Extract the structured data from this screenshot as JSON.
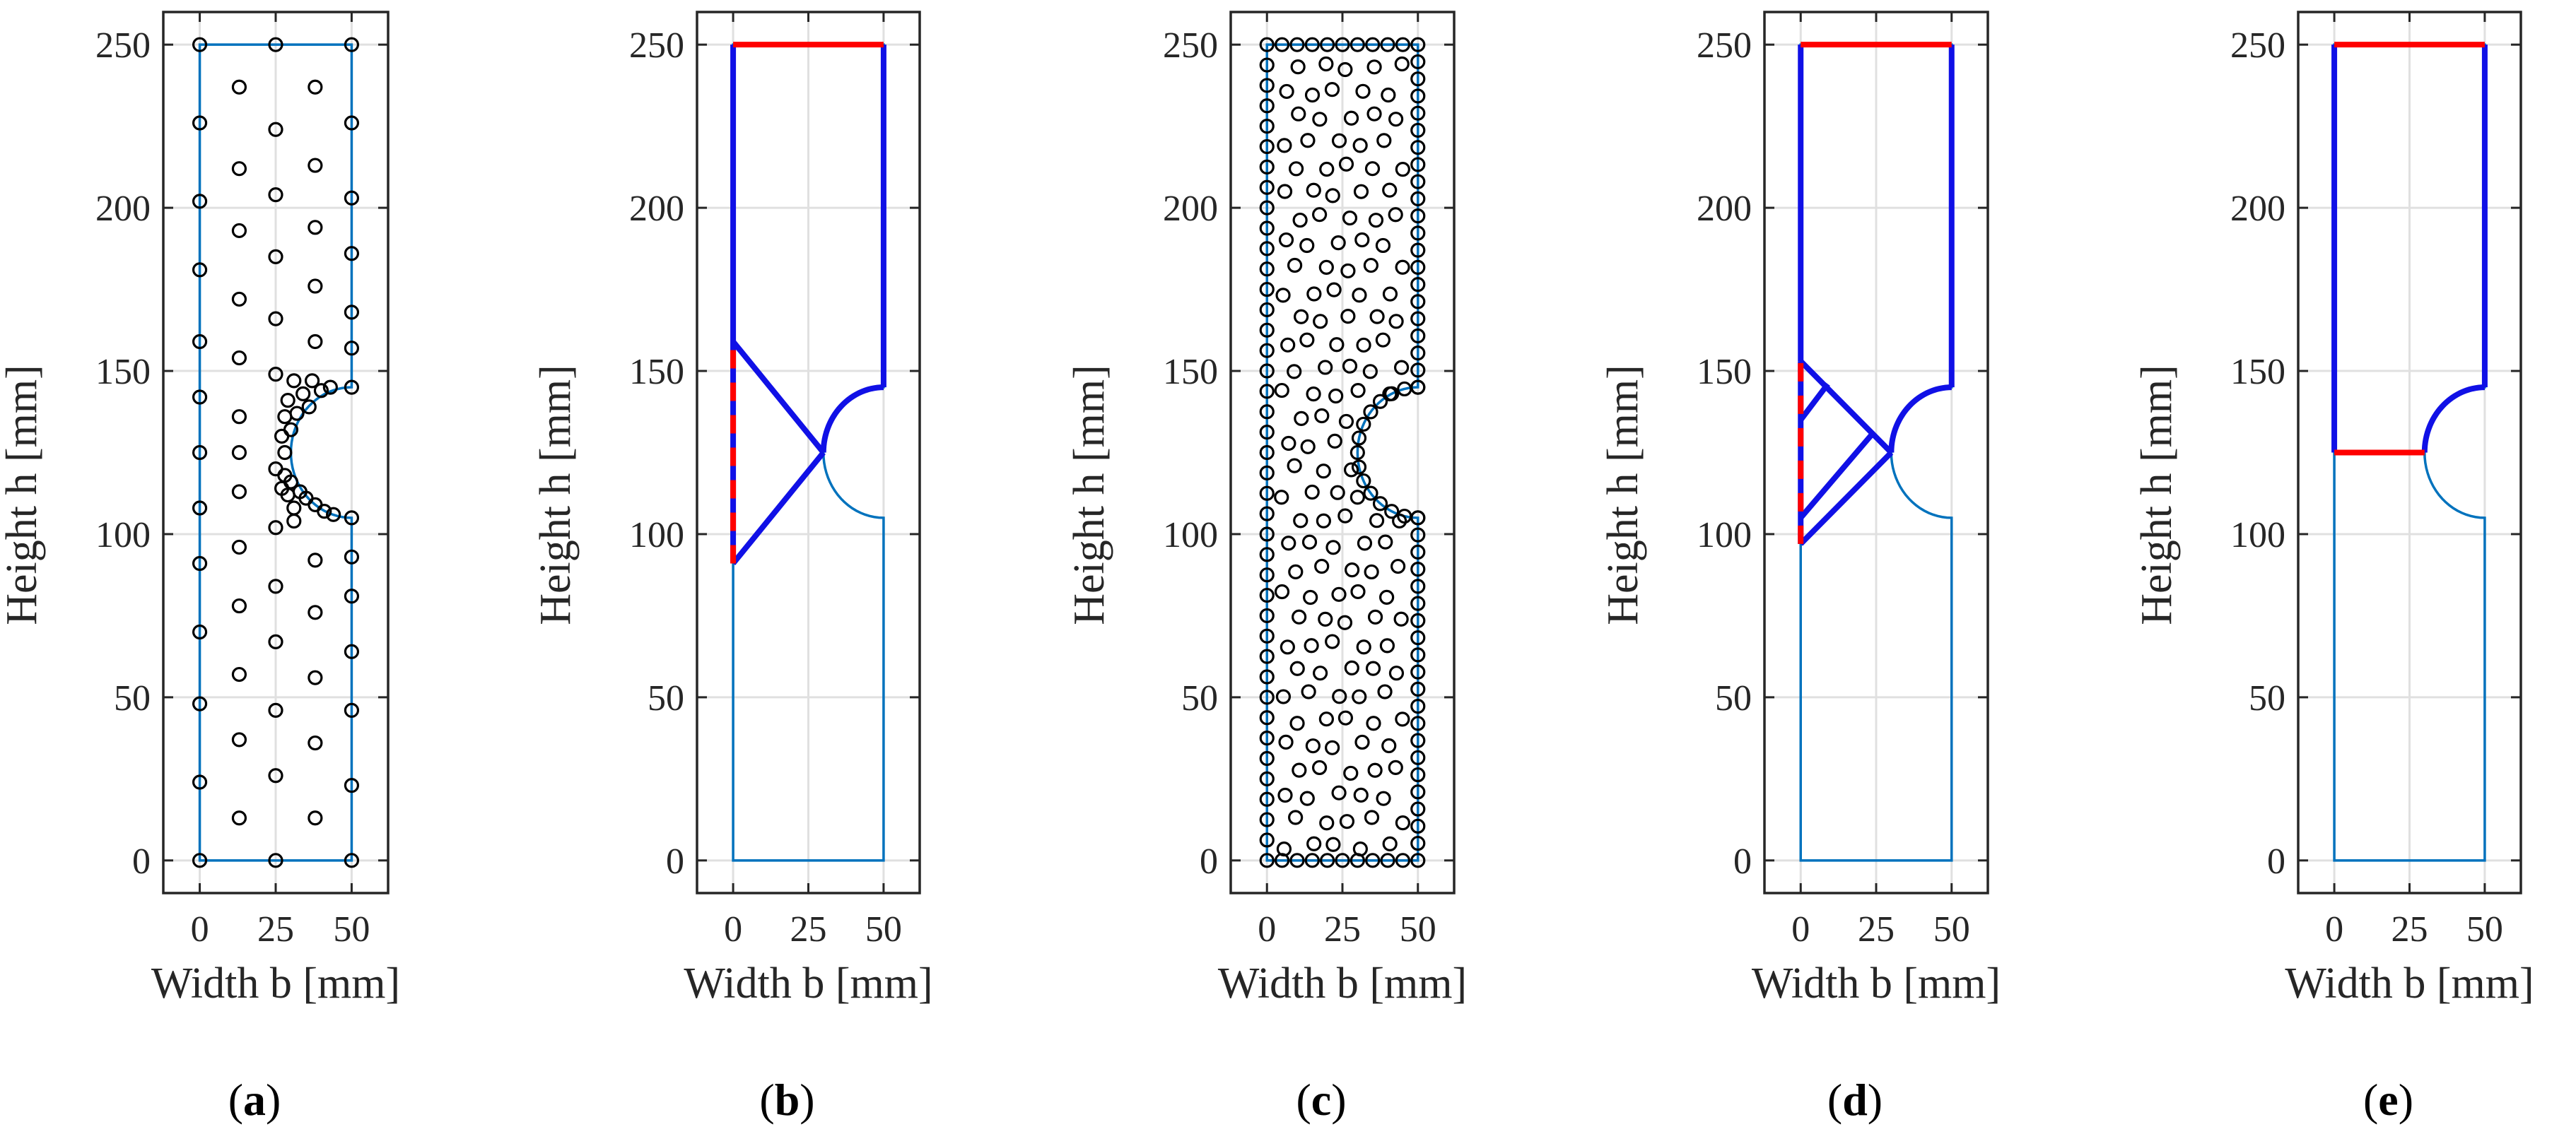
{
  "figure": {
    "panel_labels": [
      "a",
      "b",
      "c",
      "d",
      "e"
    ]
  },
  "colors": {
    "outline": "#0072BD",
    "strut": "#1010E6",
    "tie": "#FF0000",
    "grid": "#E0E0E0",
    "axes": "#262626",
    "point": "#000000"
  },
  "chart_data": [
    {
      "type": "scatter",
      "panel": "a",
      "xlabel": "Width b [mm]",
      "ylabel": "Height h [mm]",
      "xlim": [
        -12,
        62
      ],
      "ylim": [
        -10,
        260
      ],
      "xticks": [
        0,
        25,
        50
      ],
      "yticks": [
        0,
        50,
        100,
        150,
        200,
        250
      ],
      "grid": true,
      "outline": "notched",
      "points": [
        [
          0,
          250
        ],
        [
          25,
          250
        ],
        [
          50,
          250
        ],
        [
          13,
          237
        ],
        [
          38,
          237
        ],
        [
          0,
          226
        ],
        [
          50,
          226
        ],
        [
          25,
          224
        ],
        [
          13,
          212
        ],
        [
          38,
          213
        ],
        [
          0,
          202
        ],
        [
          50,
          203
        ],
        [
          25,
          204
        ],
        [
          13,
          193
        ],
        [
          38,
          194
        ],
        [
          50,
          186
        ],
        [
          0,
          181
        ],
        [
          25,
          185
        ],
        [
          38,
          176
        ],
        [
          13,
          172
        ],
        [
          50,
          168
        ],
        [
          25,
          166
        ],
        [
          38,
          159
        ],
        [
          0,
          159
        ],
        [
          50,
          157
        ],
        [
          13,
          154
        ],
        [
          50,
          145
        ],
        [
          25,
          149
        ],
        [
          31,
          147
        ],
        [
          34,
          143
        ],
        [
          37,
          147
        ],
        [
          40,
          144
        ],
        [
          43,
          145
        ],
        [
          29,
          141
        ],
        [
          32,
          137
        ],
        [
          36,
          139
        ],
        [
          28,
          136
        ],
        [
          30,
          132
        ],
        [
          27,
          130
        ],
        [
          0,
          142
        ],
        [
          13,
          136
        ],
        [
          28,
          125
        ],
        [
          13,
          125
        ],
        [
          0,
          125
        ],
        [
          25,
          120
        ],
        [
          28,
          118
        ],
        [
          30,
          116
        ],
        [
          33,
          113
        ],
        [
          27,
          114
        ],
        [
          29,
          112
        ],
        [
          31,
          108
        ],
        [
          35,
          111
        ],
        [
          38,
          109
        ],
        [
          41,
          107
        ],
        [
          44,
          106
        ],
        [
          31,
          104
        ],
        [
          13,
          113
        ],
        [
          0,
          108
        ],
        [
          50,
          105
        ],
        [
          25,
          102
        ],
        [
          13,
          96
        ],
        [
          38,
          92
        ],
        [
          0,
          91
        ],
        [
          50,
          93
        ],
        [
          25,
          84
        ],
        [
          38,
          76
        ],
        [
          13,
          78
        ],
        [
          0,
          70
        ],
        [
          50,
          81
        ],
        [
          25,
          67
        ],
        [
          38,
          56
        ],
        [
          13,
          57
        ],
        [
          50,
          64
        ],
        [
          0,
          48
        ],
        [
          25,
          46
        ],
        [
          38,
          36
        ],
        [
          13,
          37
        ],
        [
          50,
          46
        ],
        [
          0,
          24
        ],
        [
          25,
          26
        ],
        [
          50,
          23
        ],
        [
          13,
          13
        ],
        [
          38,
          13
        ],
        [
          0,
          0
        ],
        [
          25,
          0
        ],
        [
          50,
          0
        ]
      ]
    },
    {
      "type": "line",
      "panel": "b",
      "xlabel": "Width b [mm]",
      "ylabel": "Height h [mm]",
      "xlim": [
        -12,
        62
      ],
      "ylim": [
        -10,
        260
      ],
      "xticks": [
        0,
        25,
        50
      ],
      "yticks": [
        0,
        50,
        100,
        150,
        200,
        250
      ],
      "grid": true,
      "outline": "notched",
      "series": [
        {
          "name": "strut",
          "style": "solid",
          "points": [
            [
              0,
              159
            ],
            [
              0,
              250
            ]
          ]
        },
        {
          "name": "strut",
          "style": "solid",
          "points": [
            [
              50,
              250
            ],
            [
              50,
              145
            ]
          ]
        },
        {
          "name": "strut",
          "style": "solid",
          "points": [
            [
              0,
              159
            ],
            [
              30,
              125
            ]
          ]
        },
        {
          "name": "strut",
          "style": "solid",
          "points": [
            [
              0,
              91
            ],
            [
              30,
              125
            ]
          ]
        },
        {
          "name": "strut",
          "style": "arc",
          "points": [
            [
              30,
              125
            ],
            [
              50,
              145
            ]
          ]
        },
        {
          "name": "tie",
          "style": "solid",
          "points": [
            [
              0,
              250
            ],
            [
              50,
              250
            ]
          ]
        },
        {
          "name": "tie",
          "style": "dashed",
          "points": [
            [
              0,
              91
            ],
            [
              0,
              159
            ]
          ]
        }
      ]
    },
    {
      "type": "scatter",
      "panel": "c",
      "xlabel": "Width b [mm]",
      "ylabel": "Height h [mm]",
      "xlim": [
        -12,
        62
      ],
      "ylim": [
        -10,
        260
      ],
      "xticks": [
        0,
        25,
        50
      ],
      "yticks": [
        0,
        50,
        100,
        150,
        200,
        250
      ],
      "grid": true,
      "outline": "notched",
      "points": "dense automatically generated point grid (about 450 nodes) spaced about 5 mm across the notched specimen"
    },
    {
      "type": "line",
      "panel": "d",
      "xlabel": "Width b [mm]",
      "ylabel": "Height h [mm]",
      "xlim": [
        -12,
        62
      ],
      "ylim": [
        -10,
        260
      ],
      "xticks": [
        0,
        25,
        50
      ],
      "yticks": [
        0,
        50,
        100,
        150,
        200,
        250
      ],
      "grid": true,
      "outline": "notched",
      "series": [
        {
          "name": "strut",
          "style": "solid",
          "points": [
            [
              0,
              153
            ],
            [
              0,
              250
            ]
          ]
        },
        {
          "name": "strut",
          "style": "solid",
          "points": [
            [
              50,
              250
            ],
            [
              50,
              145
            ]
          ]
        },
        {
          "name": "strut",
          "style": "solid",
          "points": [
            [
              0,
              153
            ],
            [
              30,
              125
            ]
          ]
        },
        {
          "name": "strut",
          "style": "solid",
          "points": [
            [
              0,
              97
            ],
            [
              30,
              125
            ]
          ]
        },
        {
          "name": "strut",
          "style": "solid",
          "points": [
            [
              0,
              135
            ],
            [
              9,
              146
            ]
          ]
        },
        {
          "name": "strut",
          "style": "solid",
          "points": [
            [
              0,
              105
            ],
            [
              24,
              131
            ]
          ]
        },
        {
          "name": "strut",
          "style": "arc",
          "points": [
            [
              30,
              125
            ],
            [
              50,
              145
            ]
          ]
        },
        {
          "name": "tie",
          "style": "solid",
          "points": [
            [
              0,
              250
            ],
            [
              50,
              250
            ]
          ]
        },
        {
          "name": "tie",
          "style": "dashed",
          "points": [
            [
              0,
              97
            ],
            [
              0,
              153
            ]
          ]
        }
      ]
    },
    {
      "type": "line",
      "panel": "e",
      "xlabel": "Width b [mm]",
      "ylabel": "Height h [mm]",
      "xlim": [
        -12,
        62
      ],
      "ylim": [
        -10,
        260
      ],
      "xticks": [
        0,
        25,
        50
      ],
      "yticks": [
        0,
        50,
        100,
        150,
        200,
        250
      ],
      "grid": true,
      "outline": "notched",
      "series": [
        {
          "name": "strut",
          "style": "solid",
          "points": [
            [
              0,
              125
            ],
            [
              0,
              250
            ]
          ]
        },
        {
          "name": "strut",
          "style": "solid",
          "points": [
            [
              50,
              250
            ],
            [
              50,
              145
            ]
          ]
        },
        {
          "name": "strut",
          "style": "arc",
          "points": [
            [
              30,
              125
            ],
            [
              50,
              145
            ]
          ]
        },
        {
          "name": "tie",
          "style": "solid",
          "points": [
            [
              0,
              250
            ],
            [
              50,
              250
            ]
          ]
        },
        {
          "name": "tie",
          "style": "solid",
          "points": [
            [
              0,
              125
            ],
            [
              30,
              125
            ]
          ]
        }
      ]
    }
  ]
}
